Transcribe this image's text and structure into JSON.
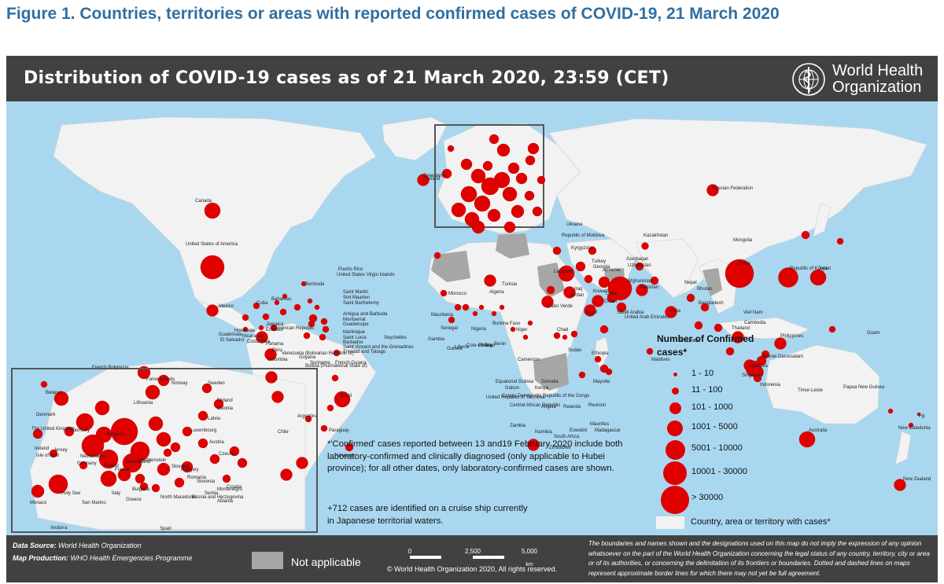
{
  "figure_title": "Figure 1. Countries, territories or areas with reported confirmed cases of COVID-19, 21 March 2020",
  "map_title": "Distribution of COVID-19  cases as of 21 March 2020, 23:59 (CET)",
  "org_name": "World Health\nOrganization",
  "legend": {
    "title": "Number of Confirmed cases*",
    "marker_color": "#e00000",
    "classes": [
      "1 - 10",
      "11 - 100",
      "101 - 1000",
      "1001 - 5000",
      "5001 - 10000",
      "10001 - 30000",
      "> 30000"
    ],
    "country_with_cases": "Country, area or territory with cases*"
  },
  "notes": {
    "confirmed_note": "*'Confirmed' cases reported between 13 and19 February 2020 include both laboratory-confirmed and clinically diagnosed (only applicable to Hubei province); for all other dates, only laboratory-confirmed cases are shown.",
    "cruise_note": "+712 cases are identified on a cruise ship currently in Japanese territorial waters."
  },
  "footer": {
    "data_source_key": "Data Source:",
    "data_source_value": "World Health Organization",
    "map_production_key": "Map Production:",
    "map_production_value": "WHO Health Emergencies Programme",
    "not_applicable": "Not applicable",
    "scale_labels": [
      "0",
      "2,500",
      "5,000"
    ],
    "scale_unit": "km",
    "copyright": "© World Health Organization  2020,  All rights reserved.",
    "disclaimer": "The boundaries and names shown and the designations used on this map do not imply the expression of any opinion whatsoever on the part of the World Health Organization concerning the legal status of any country, territory, city or area or of its authorities, or concerning the delimitation of its frontiers or boundaries. Dotted and dashed lines on maps represent approximate border lines for which there may not yet be full agreement."
  },
  "colors": {
    "ocean": "#a9d7f0",
    "land_cases": "#f2f2f2",
    "not_applicable": "#a6a6a6",
    "header": "#414141",
    "title": "#2f6fa3"
  },
  "map_markers": [
    {
      "name": "Canada",
      "cls": 4
    },
    {
      "name": "United States of America",
      "cls": 6
    },
    {
      "name": "Russian Federation",
      "cls": 3
    },
    {
      "name": "China",
      "cls": 7
    },
    {
      "name": "Republic of Korea",
      "cls": 5
    },
    {
      "name": "Japan",
      "cls": 4
    },
    {
      "name": "Brazil",
      "cls": 4
    },
    {
      "name": "Australia",
      "cls": 4
    },
    {
      "name": "New Zealand",
      "cls": 3
    },
    {
      "name": "Iran",
      "cls": 6
    },
    {
      "name": "Mexico",
      "cls": 3
    },
    {
      "name": "Chile",
      "cls": 3
    },
    {
      "name": "Argentina",
      "cls": 3
    },
    {
      "name": "South Africa",
      "cls": 3
    },
    {
      "name": "India",
      "cls": 3
    },
    {
      "name": "Turkey",
      "cls": 4
    },
    {
      "name": "Israel",
      "cls": 3
    },
    {
      "name": "Malaysia",
      "cls": 4
    },
    {
      "name": "Philippines",
      "cls": 3
    },
    {
      "name": "Thailand",
      "cls": 3
    },
    {
      "name": "Indonesia",
      "cls": 3
    },
    {
      "name": "Singapore",
      "cls": 3
    },
    {
      "name": "Qatar",
      "cls": 3
    },
    {
      "name": "Saudi Arabia",
      "cls": 3
    },
    {
      "name": "Egypt",
      "cls": 3
    },
    {
      "name": "Pakistan",
      "cls": 3
    },
    {
      "name": "Ecuador",
      "cls": 3
    },
    {
      "name": "Peru",
      "cls": 3
    },
    {
      "name": "Panama",
      "cls": 3
    },
    {
      "name": "Colombia",
      "cls": 3
    },
    {
      "name": "Iceland",
      "cls": 3
    },
    {
      "name": "Kazakhstan",
      "cls": 2
    },
    {
      "name": "Algeria",
      "cls": 3
    }
  ],
  "map_labels": [
    "Canada",
    "United States of America",
    "Russian Federation",
    "China",
    "Mongolia",
    "Kazakhstan",
    "Japan",
    "Republic of Korea",
    "India",
    "Pakistan",
    "Afghanistan",
    "Nepal",
    "Bhutan",
    "Bangladesh",
    "Sri Lanka",
    "Maldives",
    "Thailand",
    "Viet Nam",
    "Cambodia",
    "Philippines",
    "Malaysia",
    "Brunei Darussalam",
    "Singapore",
    "Indonesia",
    "Timor-Leste",
    "Papua New Guinea",
    "Guam",
    "Australia",
    "New Zealand",
    "New Caledonia",
    "Fiji",
    "Mexico",
    "Cuba",
    "Bahamas",
    "Bermuda",
    "Puerto Rico",
    "United States Virgin Islands",
    "Saint Martin",
    "Sint Maarten",
    "Saint Barthelemy",
    "Antigua and Barbuda",
    "Montserrat",
    "Guadeloupe",
    "Martinique",
    "Saint Lucia",
    "Barbados",
    "Saint Vincent and the Grenadines",
    "Trinidad and Tobago",
    "Guatemala",
    "El Salvador",
    "Honduras",
    "Nicaragua",
    "Costa Rica",
    "Panama",
    "Jamaica",
    "Dominican Republic",
    "Venezuela (Bolivarian Republic of)",
    "Guyana",
    "French Guiana",
    "Suriname",
    "Colombia",
    "Ecuador",
    "Peru",
    "Brazil",
    "Bolivia (Plurinational State of)",
    "Paraguay",
    "Uruguay",
    "Chile",
    "Argentina",
    "French Polynesia",
    "Greenland",
    "Iceland",
    "Morocco",
    "Algeria",
    "Tunisia",
    "Mauritania",
    "Senegal",
    "Gambia",
    "Guinea",
    "Liberia",
    "Cote d'Ivoire",
    "Ghana",
    "Togo",
    "Benin",
    "Nigeria",
    "Burkina Faso",
    "Niger",
    "Chad",
    "Sudan",
    "Ethiopia",
    "Somalia",
    "Kenya",
    "Rwanda",
    "United Republic of Tanzania",
    "Democratic Republic of the Congo",
    "Congo",
    "Gabon",
    "Equatorial Guinea",
    "Cameroon",
    "Central African Republic",
    "Angola",
    "Zambia",
    "Namibia",
    "Zimbabwe",
    "South Africa",
    "Eswatini",
    "Madagascar",
    "Mauritius",
    "Reunion",
    "Mayotte",
    "Seychelles",
    "Cabo Verde",
    "Egypt",
    "Saudi Arabia",
    "United Arab Emirates",
    "Oman",
    "Qatar",
    "Kuwait",
    "Iraq",
    "Jordan",
    "Lebanon",
    "Turkey",
    "Georgia",
    "Armenia",
    "Azerbaijan",
    "Uzbekistan",
    "Kyrgyzstan",
    "Republic of Moldova",
    "Ukraine",
    "Belarus",
    "Faroe Islands",
    "Norway",
    "Sweden",
    "Finland",
    "Estonia",
    "Latvia",
    "Lithuania",
    "Denmark",
    "The United Kingdom",
    "Ireland",
    "Isle of Man",
    "Guernsey",
    "Jersey",
    "Netherlands",
    "Belgium",
    "Luxembourg",
    "Germany",
    "Poland",
    "France",
    "Switzerland",
    "Liechtenstein",
    "Austria",
    "Czechia",
    "Slovakia",
    "Hungary",
    "Romania",
    "Slovenia",
    "Croatia",
    "Bosnia and Herzegovina",
    "Serbia",
    "Montenegro",
    "Albania",
    "North Macedonia",
    "Bulgaria",
    "Greece",
    "Italy",
    "San Marino",
    "Holy See",
    "Monaco",
    "Andorra",
    "Spain",
    "Portugal",
    "Gibraltar",
    "Malta"
  ]
}
